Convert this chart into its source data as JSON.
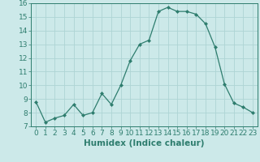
{
  "x": [
    0,
    1,
    2,
    3,
    4,
    5,
    6,
    7,
    8,
    9,
    10,
    11,
    12,
    13,
    14,
    15,
    16,
    17,
    18,
    19,
    20,
    21,
    22,
    23
  ],
  "y": [
    8.8,
    7.3,
    7.6,
    7.8,
    8.6,
    7.8,
    8.0,
    9.4,
    8.6,
    10.0,
    11.8,
    13.0,
    13.3,
    15.4,
    15.7,
    15.4,
    15.4,
    15.2,
    14.5,
    12.8,
    10.1,
    8.7,
    8.4,
    8.0
  ],
  "xlabel": "Humidex (Indice chaleur)",
  "ylim": [
    7,
    16
  ],
  "xlim": [
    -0.5,
    23.5
  ],
  "yticks": [
    7,
    8,
    9,
    10,
    11,
    12,
    13,
    14,
    15,
    16
  ],
  "xticks": [
    0,
    1,
    2,
    3,
    4,
    5,
    6,
    7,
    8,
    9,
    10,
    11,
    12,
    13,
    14,
    15,
    16,
    17,
    18,
    19,
    20,
    21,
    22,
    23
  ],
  "line_color": "#2e7d6e",
  "marker": "D",
  "marker_size": 2.0,
  "bg_color": "#cce9e9",
  "grid_color": "#aed4d4",
  "xlabel_fontsize": 7.5,
  "tick_fontsize": 6.5
}
